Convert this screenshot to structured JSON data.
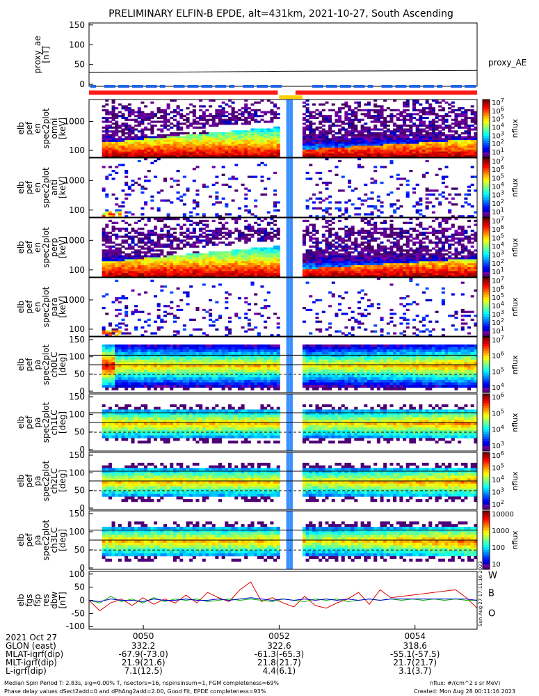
{
  "title": "PRELIMINARY ELFIN-B EPDE, alt=431km, 2021-10-27, South Ascending",
  "chart_data": [
    {
      "type": "line",
      "id": "proxy_ae",
      "ylabel": [
        "proxy_ae",
        "[nT]"
      ],
      "yticks": [
        "150",
        "100",
        "50",
        "0"
      ],
      "ylim": [
        -5,
        155
      ],
      "legend": "proxy_AE",
      "x": [
        0,
        0.25,
        0.5,
        0.75,
        1.0
      ],
      "values": [
        30,
        31,
        33,
        34,
        35
      ]
    },
    {
      "type": "heatmap",
      "id": "en_omni",
      "ylabel": [
        "elb",
        "pef",
        "en",
        "spec2plot",
        "omni",
        "[keV]"
      ],
      "yticks": [
        "1000",
        "100"
      ],
      "cbar_ticks": [
        "10^7",
        "10^6",
        "10^5",
        "10^4",
        "10^3",
        "10^2",
        "10^1"
      ],
      "cbar_label": "nflux"
    },
    {
      "type": "heatmap",
      "id": "en_anti",
      "ylabel": [
        "elb",
        "pef",
        "en",
        "spec2plot",
        "anti",
        "[keV]"
      ],
      "yticks": [
        "1000",
        "100"
      ],
      "cbar_ticks": [
        "10^7",
        "10^6",
        "10^5",
        "10^4",
        "10^3",
        "10^2",
        "10^1"
      ],
      "cbar_label": "nflux"
    },
    {
      "type": "heatmap",
      "id": "en_perp",
      "ylabel": [
        "elb",
        "pef",
        "en",
        "spec2plot",
        "perp",
        "[keV]"
      ],
      "yticks": [
        "1000",
        "100"
      ],
      "cbar_ticks": [
        "10^7",
        "10^6",
        "10^5",
        "10^4",
        "10^3",
        "10^2",
        "10^1"
      ],
      "cbar_label": "nflux"
    },
    {
      "type": "heatmap",
      "id": "en_para",
      "ylabel": [
        "elb",
        "pef",
        "en",
        "spec2plot",
        "para",
        "[keV]"
      ],
      "yticks": [
        "1000",
        "100"
      ],
      "cbar_ticks": [
        "10^7",
        "10^6",
        "10^5",
        "10^4",
        "10^3",
        "10^2",
        "10^1"
      ],
      "cbar_label": "nflux"
    },
    {
      "type": "heatmap",
      "id": "ch0LC",
      "ylabel": [
        "elb",
        "pef",
        "pa",
        "spec2plot",
        "ch0LC",
        "[deg]"
      ],
      "yticks": [
        "150",
        "100",
        "50",
        "0"
      ],
      "cbar_ticks": [
        "10^7",
        "10^6",
        "10^5",
        "10^4"
      ],
      "cbar_label": "nflux"
    },
    {
      "type": "heatmap",
      "id": "ch1LC",
      "ylabel": [
        "elb",
        "pef",
        "pa",
        "spec2plot",
        "ch1LC",
        "[deg]"
      ],
      "yticks": [
        "150",
        "100",
        "50",
        "0"
      ],
      "cbar_ticks": [
        "10^6",
        "10^5",
        "10^4",
        "10^3"
      ],
      "cbar_label": "nflux"
    },
    {
      "type": "heatmap",
      "id": "ch2LC",
      "ylabel": [
        "elb",
        "pef",
        "pa",
        "spec2plot",
        "ch2LC",
        "[deg]"
      ],
      "yticks": [
        "150",
        "100",
        "50",
        "0"
      ],
      "cbar_ticks": [
        "10^6",
        "10^5",
        "10^4",
        "10^3",
        "10^2"
      ],
      "cbar_label": "nflux"
    },
    {
      "type": "heatmap",
      "id": "ch3LC",
      "ylabel": [
        "elb",
        "pef",
        "pa",
        "spec2plot",
        "ch3LC",
        "[deg]"
      ],
      "yticks": [
        "150",
        "100",
        "50",
        "0"
      ],
      "cbar_ticks": [
        "10000",
        "1000",
        "100",
        "10"
      ],
      "cbar_label": "nflux"
    },
    {
      "type": "line",
      "id": "fgs",
      "ylabel": [
        "elb",
        "fgs",
        "fsp",
        "res",
        "dbw",
        "[nT]"
      ],
      "yticks": [
        "100",
        "50",
        "0",
        "-50",
        "-100"
      ],
      "ylim": [
        -110,
        110
      ],
      "legend": [
        "W",
        "B",
        "O"
      ],
      "series": [
        {
          "name": "W",
          "color": "#e00000",
          "values": [
            0,
            -40,
            -10,
            5,
            -20,
            10,
            -15,
            5,
            -10,
            20,
            -10,
            30,
            10,
            -5,
            40,
            70,
            -5,
            10,
            -10,
            -25,
            15,
            -20,
            -30,
            -10,
            5,
            30,
            -15,
            40,
            10,
            15,
            20,
            25,
            30,
            35,
            40,
            10,
            -30
          ]
        },
        {
          "name": "B",
          "color": "#00b000",
          "values": [
            0,
            -10,
            15,
            -5,
            5,
            -10,
            10,
            -5,
            5,
            0,
            5,
            -5,
            0,
            5,
            0,
            5,
            0,
            -5,
            5,
            0,
            -5,
            5,
            0,
            5,
            -5,
            0,
            5,
            0,
            5,
            0,
            5,
            0,
            5,
            0,
            5,
            0,
            0
          ]
        },
        {
          "name": "O",
          "color": "#0000d0",
          "values": [
            0,
            -5,
            5,
            0,
            0,
            -5,
            5,
            0,
            0,
            5,
            0,
            0,
            5,
            0,
            5,
            10,
            5,
            0,
            5,
            0,
            5,
            0,
            5,
            0,
            5,
            0,
            5,
            0,
            5,
            5,
            5,
            5,
            5,
            5,
            5,
            5,
            0
          ]
        }
      ]
    }
  ],
  "xticks": [
    "0050",
    "0052",
    "0054"
  ],
  "footer": {
    "rows": [
      {
        "label": "2021 Oct 27",
        "v1": "",
        "v2": "",
        "v3": ""
      },
      {
        "label": "GLON (east)",
        "v1": "332.2",
        "v2": "322.6",
        "v3": "318.6"
      },
      {
        "label": "MLAT-igrf(dip)",
        "v1": "-67.9(-73.0)",
        "v2": "-61.3(-65.3)",
        "v3": "-55.1(-57.5)"
      },
      {
        "label": "MLT-igrf(dip)",
        "v1": "21.9(21.6)",
        "v2": "21.8(21.7)",
        "v3": "21.7(21.7)"
      },
      {
        "label": "L-igrf(dip)",
        "v1": "7.1(12.5)",
        "v2": "4.4(6.1)",
        "v3": "3.1(3.7)"
      }
    ],
    "note1": "Median Spin Period T: 2.83s, sig=0.00% T, nsectors=16, nspinsinsum=1, FGM completeness=69%",
    "note2": "Phase delay values dSect2add=0 and dPhAng2add=2.00, Good Fit, EPDE completeness=93%",
    "units": "nflux: #/(cm^2 s sr MeV)",
    "created": "Created: Mon Aug 28 00:11:16 2023",
    "side_stamp": "Sun Aug 27 17:11:16 2023"
  },
  "colors": {
    "red": "#ff1a1a",
    "blue": "#1e64e6",
    "yellow": "#ffd000"
  }
}
